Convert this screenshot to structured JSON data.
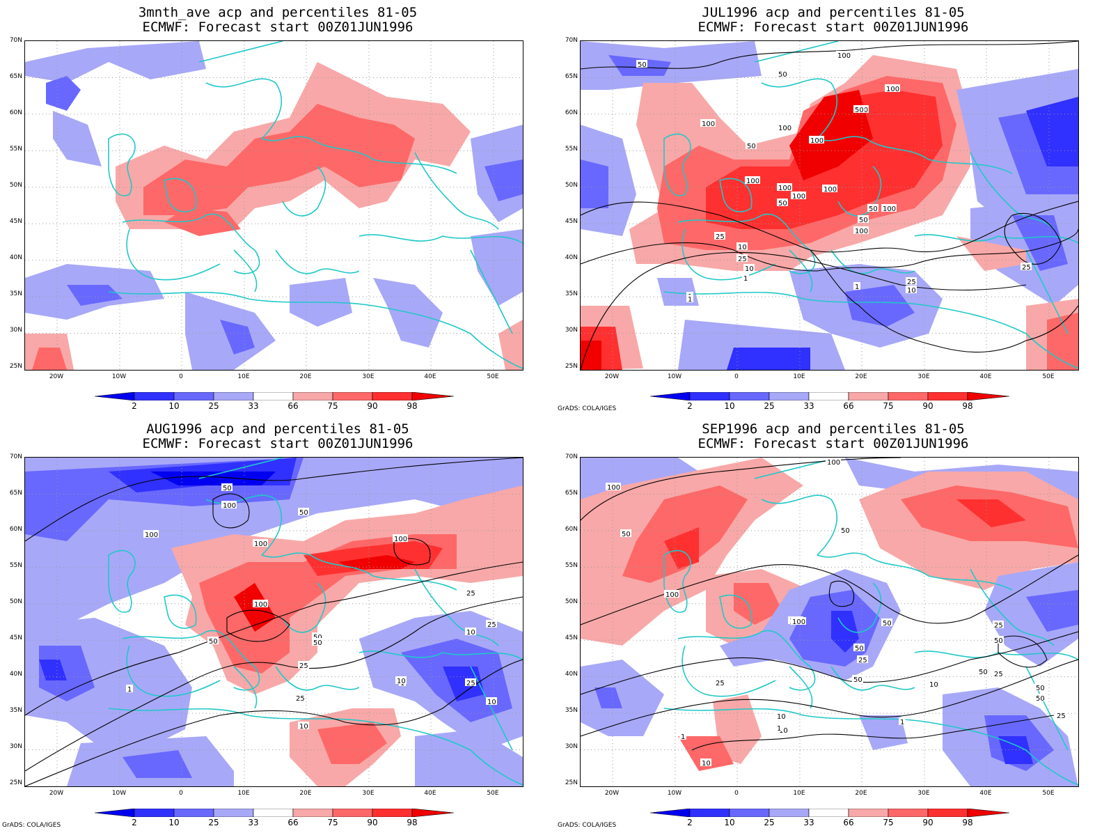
{
  "panels": [
    {
      "title1": "3mnth_ave acp and percentiles 81-05",
      "title2": "ECMWF: Forecast start 00Z01JUN1996",
      "credit": ""
    },
    {
      "title1": "JUL1996 acp and percentiles 81-05",
      "title2": "ECMWF: Forecast start 00Z01JUN1996",
      "credit": "GrADS: COLA/IGES"
    },
    {
      "title1": "AUG1996 acp and percentiles 81-05",
      "title2": "ECMWF: Forecast start 00Z01JUN1996",
      "credit": "GrADS: COLA/IGES"
    },
    {
      "title1": "SEP1996 acp and percentiles 81-05",
      "title2": "ECMWF: Forecast start 00Z01JUN1996",
      "credit": "GrADS: COLA/IGES"
    }
  ],
  "lat_labels": [
    "70N",
    "65N",
    "60N",
    "55N",
    "50N",
    "45N",
    "40N",
    "35N",
    "30N",
    "25N"
  ],
  "lon_labels": [
    "20W",
    "10W",
    "0",
    "10E",
    "20E",
    "30E",
    "40E",
    "50E"
  ],
  "colorbar_labels": [
    "2",
    "10",
    "25",
    "33",
    "66",
    "75",
    "90",
    "98"
  ],
  "colorbar_colors": [
    "#0000f0",
    "#3030ff",
    "#6868ff",
    "#a8a8f8",
    "#ffffff",
    "#f8a8a8",
    "#ff6868",
    "#ff3030",
    "#f00000"
  ],
  "coast_color": "#20c8c8",
  "contour_labels": {
    "p1": [
      "100",
      "50",
      "50",
      "100",
      "100",
      "50",
      "100",
      "100",
      "50",
      "100",
      "100",
      "100",
      "100",
      "100",
      "50",
      "50",
      "50",
      "50",
      "100",
      "25",
      "10",
      "25",
      "10",
      "1",
      "1",
      "1",
      "10",
      "25",
      "100",
      "25",
      "1"
    ],
    "p2": [
      "50",
      "100",
      "50",
      "100",
      "100",
      "100",
      "100",
      "50",
      "50",
      "25",
      "25",
      "10",
      "1",
      "10",
      "25",
      "10",
      "1",
      "25",
      "50",
      "10",
      "25"
    ],
    "p3": [
      "100",
      "100",
      "50",
      "50",
      "100",
      "50",
      "100",
      "100",
      "50",
      "50",
      "50",
      "25",
      "50",
      "25",
      "25",
      "10",
      "50",
      "25",
      "50",
      "10",
      "1",
      "10",
      "1",
      "1",
      "25",
      "10"
    ]
  }
}
